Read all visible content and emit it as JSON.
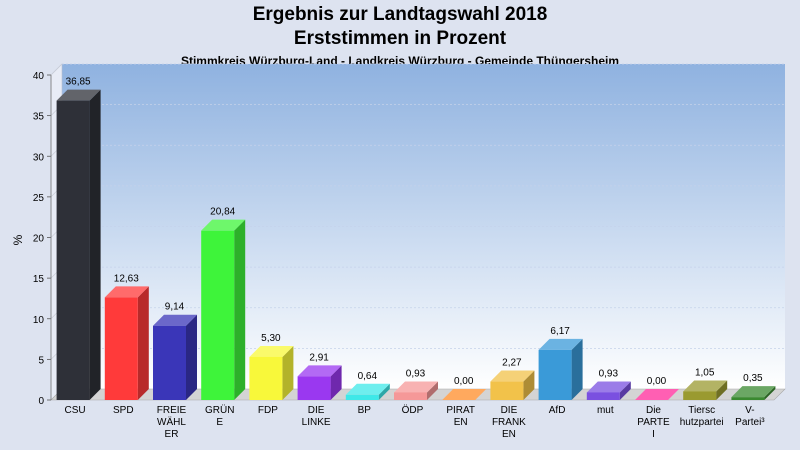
{
  "chart_data": {
    "type": "bar",
    "title": "Ergebnis zur Landtagswahl 2018",
    "title2": "Erststimmen in Prozent",
    "subtitle": "Stimmkreis Würzburg-Land - Landkreis Würzburg - Gemeinde Thüngersheim",
    "ylabel": "%",
    "ylim": [
      0,
      40
    ],
    "yticks": [
      "0",
      "5",
      "10",
      "15",
      "20",
      "25",
      "30",
      "35",
      "40"
    ],
    "grid": true,
    "categories": [
      [
        "CSU"
      ],
      [
        "SPD"
      ],
      [
        "FREIE",
        "WÄHL",
        "ER"
      ],
      [
        "GRÜN",
        "E"
      ],
      [
        "FDP"
      ],
      [
        "DIE",
        "LINKE"
      ],
      [
        "BP"
      ],
      [
        "ÖDP"
      ],
      [
        "PIRAT",
        "EN"
      ],
      [
        "DIE",
        "FRANK",
        "EN"
      ],
      [
        "AfD"
      ],
      [
        "mut"
      ],
      [
        "Die",
        "PARTE",
        "I"
      ],
      [
        "Tiersc",
        "hutzpartei"
      ],
      [
        "V-",
        "Partei³"
      ]
    ],
    "values": [
      36.85,
      12.63,
      9.14,
      20.84,
      5.3,
      2.91,
      0.64,
      0.93,
      0.0,
      2.27,
      6.17,
      0.93,
      0.0,
      1.05,
      0.35
    ],
    "value_labels": [
      "36,85",
      "12,63",
      "9,14",
      "20,84",
      "5,30",
      "2,91",
      "0,64",
      "0,93",
      "0,00",
      "2,27",
      "6,17",
      "0,93",
      "0,00",
      "1,05",
      "0,35"
    ],
    "colors": [
      "#2e3038",
      "#ff3a3a",
      "#3a36b8",
      "#3ef43a",
      "#f8f83a",
      "#9a38f0",
      "#3ee8e8",
      "#f59898",
      "#ff8c28",
      "#f2c24a",
      "#3a9ad8",
      "#7a50e0",
      "#ff2a9a",
      "#9a9a30",
      "#3a8a30"
    ]
  }
}
